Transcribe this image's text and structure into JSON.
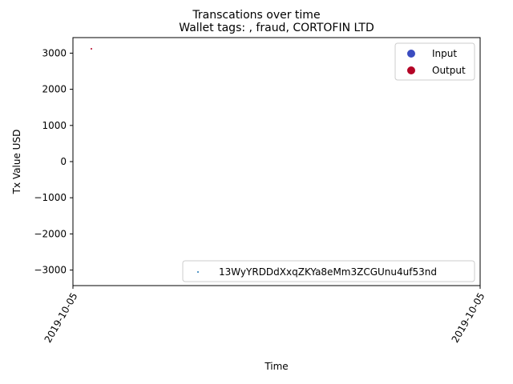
{
  "chart_data": {
    "type": "scatter",
    "suptitle": "Transcations over time",
    "title": "Wallet tags: , fraud, CORTOFIN LTD",
    "xlabel": "Time",
    "ylabel": "Tx Value USD",
    "x_tick_labels": [
      "2019-10-05",
      "2019-10-05"
    ],
    "y_ticks": [
      3000,
      2000,
      1000,
      0,
      -1000,
      -2000,
      -3000
    ],
    "y_tick_labels": [
      "3000",
      "2000",
      "1000",
      "0",
      "−1000",
      "−2000",
      "−3000"
    ],
    "ylim": [
      -3430,
      3430
    ],
    "grid": false,
    "series": [
      {
        "name": "Output",
        "color": "#b40426",
        "points": [
          {
            "x": "2019-10-05",
            "y": 3120
          }
        ]
      }
    ],
    "legends": [
      {
        "placement": "upper right",
        "entries": [
          {
            "label": "Input",
            "color": "#3b4cc0",
            "marker": "circle"
          },
          {
            "label": "Output",
            "color": "#b40426",
            "marker": "circle"
          }
        ]
      },
      {
        "placement": "lower right",
        "entries": [
          {
            "label": "13WyYRDDdXxqZKYa8eMm3ZCGUnu4uf53nd",
            "color": "#1f77b4",
            "marker": "dot"
          }
        ]
      }
    ]
  }
}
